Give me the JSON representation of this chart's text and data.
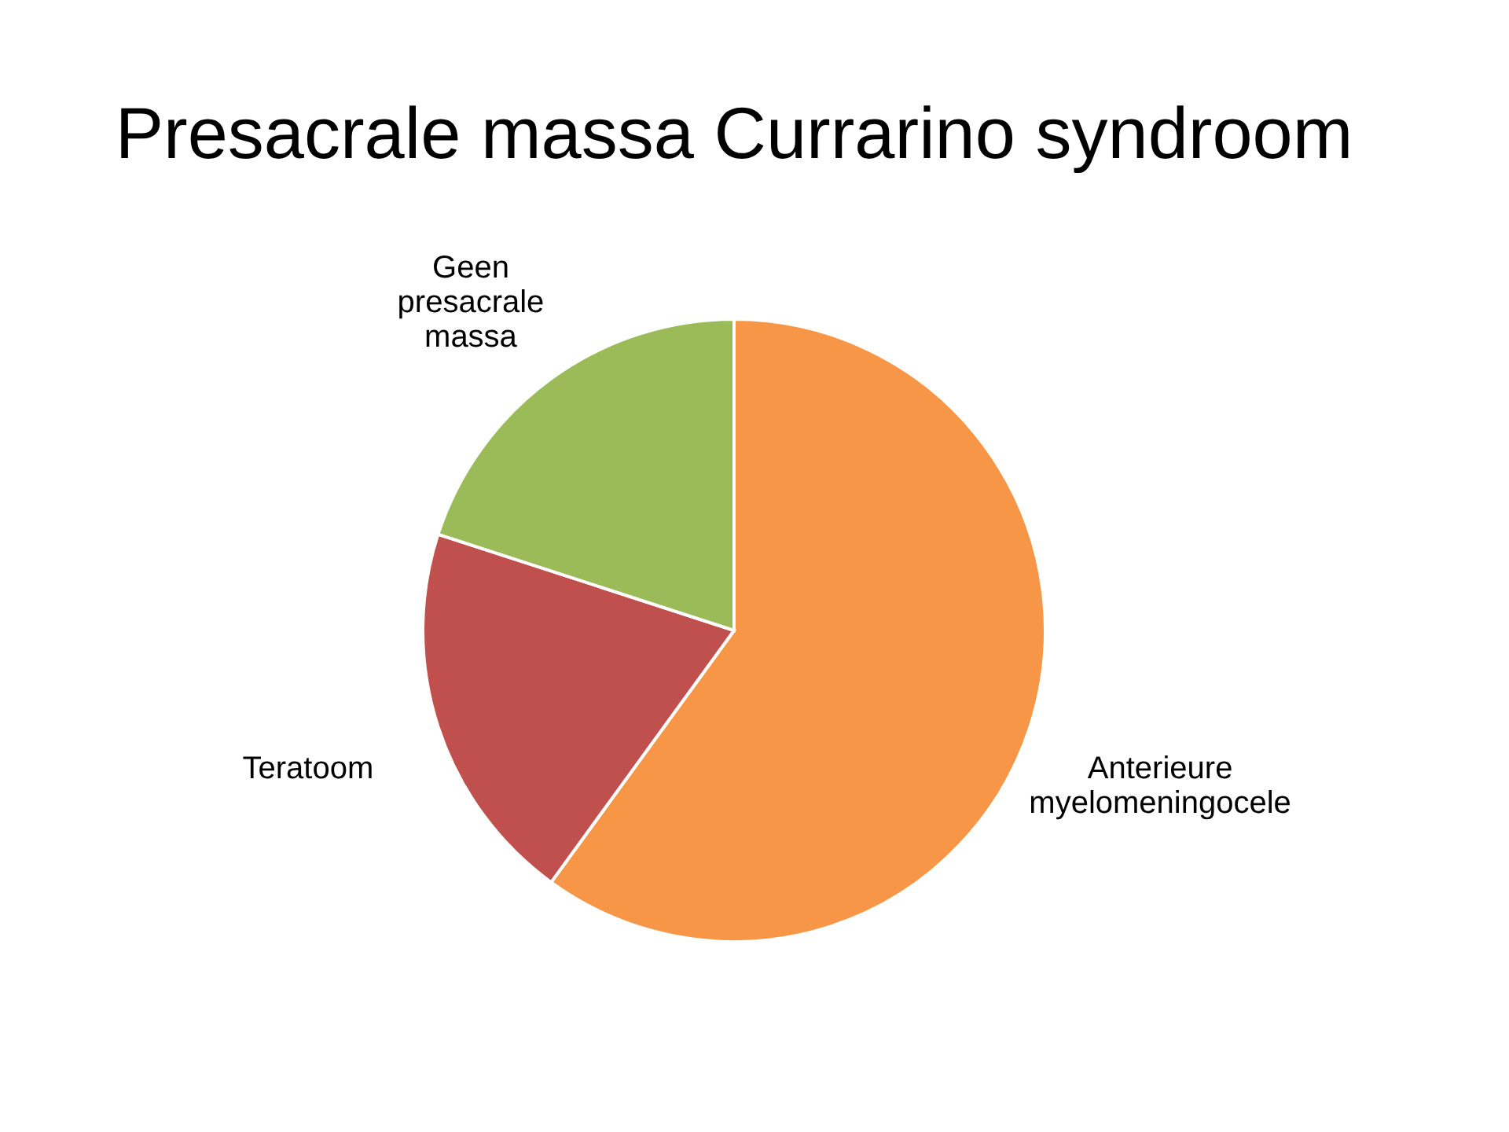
{
  "chart_data": {
    "type": "pie",
    "title": "Presacrale massa Currarino syndroom",
    "categories": [
      "Anterieure myelomeningocele",
      "Teratoom",
      "Geen presacrale massa"
    ],
    "values": [
      60,
      20,
      20
    ],
    "colors": [
      "#f79646",
      "#c0504d",
      "#9bbb59"
    ],
    "legend": false
  }
}
